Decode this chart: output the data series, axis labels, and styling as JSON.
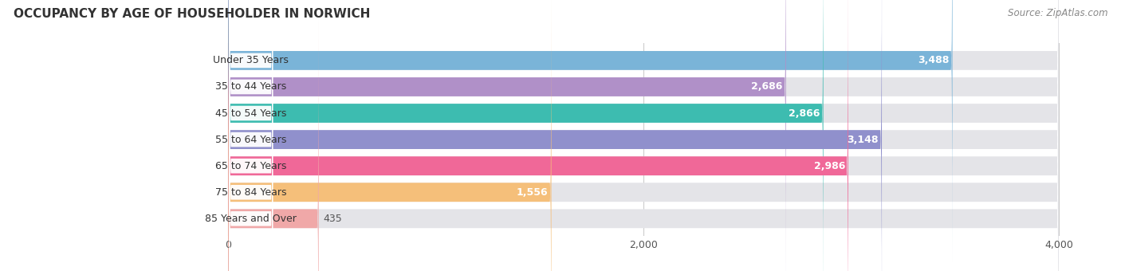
{
  "title": "OCCUPANCY BY AGE OF HOUSEHOLDER IN NORWICH",
  "source": "Source: ZipAtlas.com",
  "categories": [
    "Under 35 Years",
    "35 to 44 Years",
    "45 to 54 Years",
    "55 to 64 Years",
    "65 to 74 Years",
    "75 to 84 Years",
    "85 Years and Over"
  ],
  "values": [
    3488,
    2686,
    2866,
    3148,
    2986,
    1556,
    435
  ],
  "bar_colors": [
    "#7ab4d8",
    "#b090c8",
    "#3dbcb0",
    "#9090cc",
    "#f06898",
    "#f5bf7a",
    "#f0a8a8"
  ],
  "bar_bg_color": "#e4e4e8",
  "xlim_left": -1100,
  "xlim_right": 4300,
  "xmax": 4000,
  "xticks": [
    0,
    2000,
    4000
  ],
  "title_fontsize": 11,
  "source_fontsize": 8.5,
  "label_fontsize": 9,
  "value_fontsize": 9,
  "background_color": "#ffffff",
  "bar_bg_full": 4000,
  "bar_height": 0.72,
  "rounding_size": 8
}
